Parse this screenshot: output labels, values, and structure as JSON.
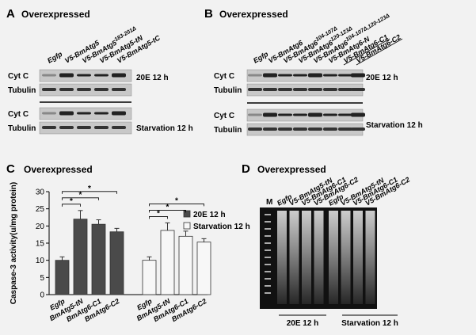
{
  "panel_a": {
    "letter": "A",
    "title": "Overexpressed",
    "lanes": [
      {
        "name": "Egfp"
      },
      {
        "name": "V5-BmAtg5"
      },
      {
        "name": "V5-BmAtg5",
        "sup": "183-201Δ"
      },
      {
        "name": "V5-BmAtg5-tN"
      },
      {
        "name": "V5-BmAtg5-tC"
      }
    ],
    "rows": [
      "Cyt C",
      "Tubulin",
      "Cyt C",
      "Tubulin"
    ],
    "conditions": [
      "20E 12 h",
      "Starvation 12 h"
    ]
  },
  "panel_b": {
    "letter": "B",
    "title": "Overexpressed",
    "lanes": [
      {
        "name": "Egfp"
      },
      {
        "name": "V5-BmAtg6"
      },
      {
        "name": "V5-BmAtg6",
        "sup": "104-107Δ"
      },
      {
        "name": "V5-BmAtg6",
        "sup": "120-123Δ"
      },
      {
        "name": "V5-BmAtg6",
        "sup": "104-107Δ,120-123Δ"
      },
      {
        "name": "V5-BmAtg6-N"
      },
      {
        "name": "V5-BmAtg6-C1"
      },
      {
        "name": "V5-BmAtg6-C2"
      }
    ],
    "rows": [
      "Cyt C",
      "Tubulin",
      "Cyt C",
      "Tubulin"
    ],
    "conditions": [
      "20E 12 h",
      "Starvation 12 h"
    ]
  },
  "panel_c": {
    "letter": "C",
    "title": "Overexpressed"
  },
  "chart_data": {
    "type": "bar",
    "y_label": "Caspase-3 activity(u/mg protein)",
    "categories": [
      "Egfp",
      "BmAtg5-tN",
      "BmAtg6-C1",
      "BmAtg6-C2"
    ],
    "series": [
      {
        "name": "20E 12 h",
        "color": "#4a4a4a",
        "values": [
          10,
          22,
          20.5,
          18.3
        ],
        "errors": [
          1,
          2.5,
          1.3,
          1
        ]
      },
      {
        "name": "Starvation 12 h",
        "color": "#f7f7f7",
        "values": [
          10,
          18.7,
          17,
          15.3
        ],
        "errors": [
          1,
          2.2,
          1.5,
          1
        ]
      }
    ],
    "significance_marker": "*",
    "ylim": [
      0,
      30
    ],
    "yticks": [
      0,
      5,
      10,
      15,
      20,
      25,
      30
    ]
  },
  "panel_d": {
    "letter": "D",
    "title": "Overexpressed",
    "marker_lane": "M",
    "lanes": [
      "Egfp",
      "V5-BmAtg5-tN",
      "V5-BmAtg6-C1",
      "V5-BmAtg6-C2",
      "Egfp",
      "V5-BmAtg5-tN",
      "V5-BmAtg6-C1",
      "V5-BmAtg6-C2"
    ],
    "groups": [
      "20E 12 h",
      "Starvation 12 h"
    ]
  }
}
